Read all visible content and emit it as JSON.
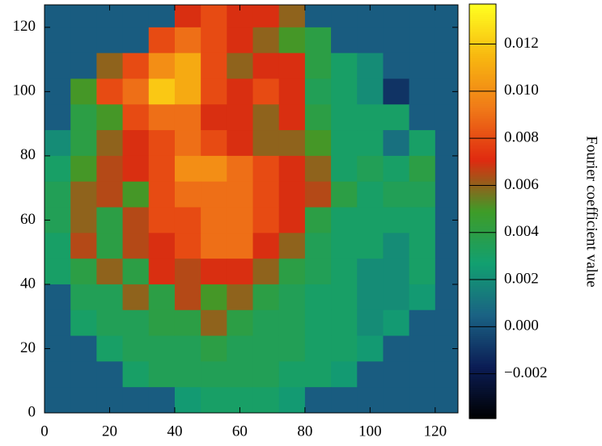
{
  "chart_data": {
    "type": "heatmap",
    "x": [
      4,
      12,
      20,
      28,
      36,
      44,
      52,
      60,
      68,
      76,
      84,
      92,
      100,
      108,
      116,
      124
    ],
    "y": [
      124,
      116,
      108,
      100,
      92,
      84,
      76,
      68,
      60,
      52,
      44,
      36,
      28,
      20,
      12,
      4
    ],
    "z": [
      [
        0.0003,
        0.0003,
        0.0003,
        0.0003,
        0.0003,
        0.007,
        0.008,
        0.007,
        0.007,
        0.006,
        0.0003,
        0.0003,
        0.0003,
        0.0003,
        0.0003,
        0.0003
      ],
      [
        0.0003,
        0.0003,
        0.0003,
        0.0003,
        0.008,
        0.009,
        0.008,
        0.007,
        0.006,
        0.005,
        0.004,
        0.0003,
        0.0003,
        0.0003,
        0.0003,
        0.0003
      ],
      [
        0.0003,
        0.0003,
        0.006,
        0.008,
        0.01,
        0.011,
        0.008,
        0.006,
        0.007,
        0.007,
        0.004,
        0.003,
        0.002,
        0.0003,
        0.0003,
        0.0003
      ],
      [
        0.0003,
        0.005,
        0.008,
        0.009,
        0.012,
        0.011,
        0.008,
        0.007,
        0.008,
        0.007,
        0.0035,
        0.003,
        0.002,
        -0.001,
        0.0003,
        0.0003
      ],
      [
        0.0003,
        0.004,
        0.005,
        0.008,
        0.009,
        0.009,
        0.007,
        0.007,
        0.006,
        0.007,
        0.004,
        0.003,
        0.003,
        0.003,
        0.0003,
        0.0003
      ],
      [
        0.002,
        0.004,
        0.006,
        0.007,
        0.008,
        0.009,
        0.008,
        0.007,
        0.006,
        0.006,
        0.005,
        0.003,
        0.003,
        0.001,
        0.003,
        0.0003
      ],
      [
        0.003,
        0.005,
        0.0065,
        0.007,
        0.008,
        0.01,
        0.01,
        0.009,
        0.008,
        0.007,
        0.006,
        0.003,
        0.0035,
        0.003,
        0.004,
        0.0003
      ],
      [
        0.0035,
        0.006,
        0.0065,
        0.005,
        0.008,
        0.009,
        0.009,
        0.009,
        0.008,
        0.007,
        0.0065,
        0.004,
        0.003,
        0.0035,
        0.0035,
        0.0003
      ],
      [
        0.0035,
        0.006,
        0.004,
        0.0065,
        0.008,
        0.008,
        0.009,
        0.009,
        0.008,
        0.007,
        0.004,
        0.003,
        0.003,
        0.003,
        0.003,
        0.0003
      ],
      [
        0.003,
        0.0065,
        0.004,
        0.0065,
        0.007,
        0.008,
        0.009,
        0.009,
        0.007,
        0.006,
        0.0035,
        0.003,
        0.003,
        0.002,
        0.003,
        0.0003
      ],
      [
        0.003,
        0.004,
        0.006,
        0.004,
        0.007,
        0.0065,
        0.007,
        0.007,
        0.006,
        0.004,
        0.0035,
        0.003,
        0.002,
        0.002,
        0.003,
        0.0003
      ],
      [
        0.0003,
        0.0035,
        0.0035,
        0.006,
        0.004,
        0.0065,
        0.005,
        0.006,
        0.004,
        0.0035,
        0.003,
        0.003,
        0.002,
        0.002,
        0.0025,
        0.0003
      ],
      [
        0.0003,
        0.003,
        0.0035,
        0.0035,
        0.004,
        0.004,
        0.006,
        0.004,
        0.0035,
        0.0035,
        0.003,
        0.003,
        0.002,
        0.0025,
        0.0003,
        0.0003
      ],
      [
        0.0003,
        0.0003,
        0.003,
        0.0035,
        0.0035,
        0.0035,
        0.004,
        0.0035,
        0.0035,
        0.0035,
        0.003,
        0.003,
        0.0025,
        0.0003,
        0.0003,
        0.0003
      ],
      [
        0.0003,
        0.0003,
        0.0003,
        0.003,
        0.0035,
        0.0035,
        0.0035,
        0.0035,
        0.0035,
        0.003,
        0.003,
        0.0025,
        0.0003,
        0.0003,
        0.0003,
        0.0003
      ],
      [
        0.0003,
        0.0003,
        0.0003,
        0.0003,
        0.0003,
        0.0025,
        0.003,
        0.003,
        0.003,
        0.0025,
        0.0003,
        0.0003,
        0.0003,
        0.0003,
        0.0003,
        0.0003
      ]
    ],
    "xlim": [
      0,
      127
    ],
    "ylim": [
      0,
      127
    ],
    "xticks": [
      0,
      20,
      40,
      60,
      80,
      100,
      120
    ],
    "yticks": [
      0,
      20,
      40,
      60,
      80,
      100,
      120
    ],
    "colorbar_label": "Fourier coefficient value",
    "clim": [
      -0.0039,
      0.0137
    ],
    "cticks": [
      {
        "value": -0.002,
        "label": "−0.002"
      },
      {
        "value": 0,
        "label": "0.000"
      },
      0.002,
      0.004,
      0.006,
      0.008,
      {
        "value": 0.01,
        "label": "0.010"
      },
      0.012
    ],
    "colormap": [
      "#000000",
      "#0b1d55",
      "#1a6284",
      "#12a070",
      "#3e9c28",
      "#e02a10",
      "#f07a18",
      "#f8b810",
      "#ffff20"
    ]
  }
}
